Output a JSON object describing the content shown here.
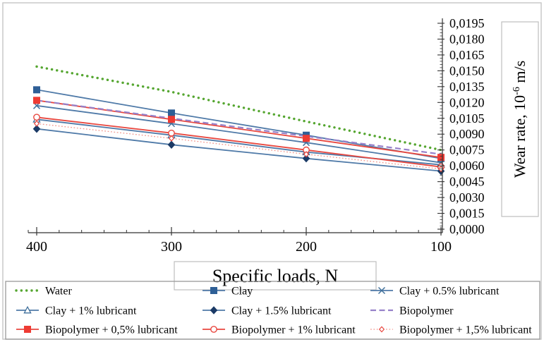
{
  "figure": {
    "background": "#ffffff",
    "border_color": "#c9c9c9",
    "axis_color": "#333333",
    "box_border_color": "#bfbfbf",
    "legend_border_color": "#999999"
  },
  "chart_data": {
    "type": "line",
    "title": "",
    "xlabel": "Specific loads, N",
    "ylabel": {
      "prefix": "Wear rate, 10",
      "superscript": "-6",
      "suffix": " m/s"
    },
    "x_categories": [
      400,
      300,
      200,
      100
    ],
    "x_tick_labels": [
      "400",
      "300",
      "200",
      "100"
    ],
    "x_axis_reversed": true,
    "ylim": [
      0,
      0.0195
    ],
    "ytick_step": 0.0015,
    "y_tick_labels": [
      "0,0000",
      "0,0015",
      "0,0030",
      "0,0045",
      "0,0060",
      "0,0075",
      "0,0090",
      "0,0105",
      "0,0120",
      "0,0135",
      "0,0150",
      "0,0165",
      "0,0180",
      "0,0195"
    ],
    "grid": false,
    "legend_position": "bottom",
    "legend_columns": 3,
    "series": [
      {
        "name": "Water",
        "color": "#55a630",
        "marker_color": "#55a630",
        "line": "dotted-round",
        "marker": "none",
        "values": [
          0.0154,
          0.013,
          0.0102,
          0.0075
        ]
      },
      {
        "name": "Clay",
        "color": "#4f7aa8",
        "marker_color": "#2e5f96",
        "line": "solid",
        "marker": "square",
        "values": [
          0.0132,
          0.011,
          0.0089,
          0.0067
        ]
      },
      {
        "name": "Clay + 0.5% lubricant",
        "color": "#4f7aa8",
        "marker_color": "#41719c",
        "line": "solid",
        "marker": "x",
        "values": [
          0.0117,
          0.01,
          0.0082,
          0.0063
        ]
      },
      {
        "name": "Clay + 1% lubricant",
        "color": "#4f7aa8",
        "marker_color": "#41719c",
        "line": "solid",
        "marker": "triangle-open",
        "values": [
          0.0104,
          0.0089,
          0.0073,
          0.0061
        ]
      },
      {
        "name": "Clay + 1.5% lubricant",
        "color": "#4f7aa8",
        "marker_color": "#1b3a66",
        "line": "solid",
        "marker": "diamond",
        "values": [
          0.0095,
          0.008,
          0.0067,
          0.0055
        ]
      },
      {
        "name": "Biopolymer",
        "color": "#9681c9",
        "marker_color": "#9681c9",
        "line": "dashed",
        "marker": "none",
        "values": [
          0.0122,
          0.0105,
          0.0088,
          0.0071
        ]
      },
      {
        "name": "Biopolymer + 0,5% lubricant",
        "color": "#e8473f",
        "marker_color": "#ee3b33",
        "line": "solid",
        "marker": "square",
        "values": [
          0.0122,
          0.0104,
          0.0086,
          0.0068
        ]
      },
      {
        "name": "Biopolymer + 1% lubricant",
        "color": "#e8473f",
        "marker_color": "#e8473f",
        "line": "solid",
        "marker": "circle-open",
        "values": [
          0.0106,
          0.0091,
          0.0075,
          0.0059
        ]
      },
      {
        "name": "Biopolymer + 1,5% lubricant",
        "color": "#f2988f",
        "marker_color": "#e8473f",
        "line": "dotted",
        "marker": "diamond-open",
        "values": [
          0.01,
          0.0086,
          0.0071,
          0.0057
        ]
      }
    ]
  }
}
